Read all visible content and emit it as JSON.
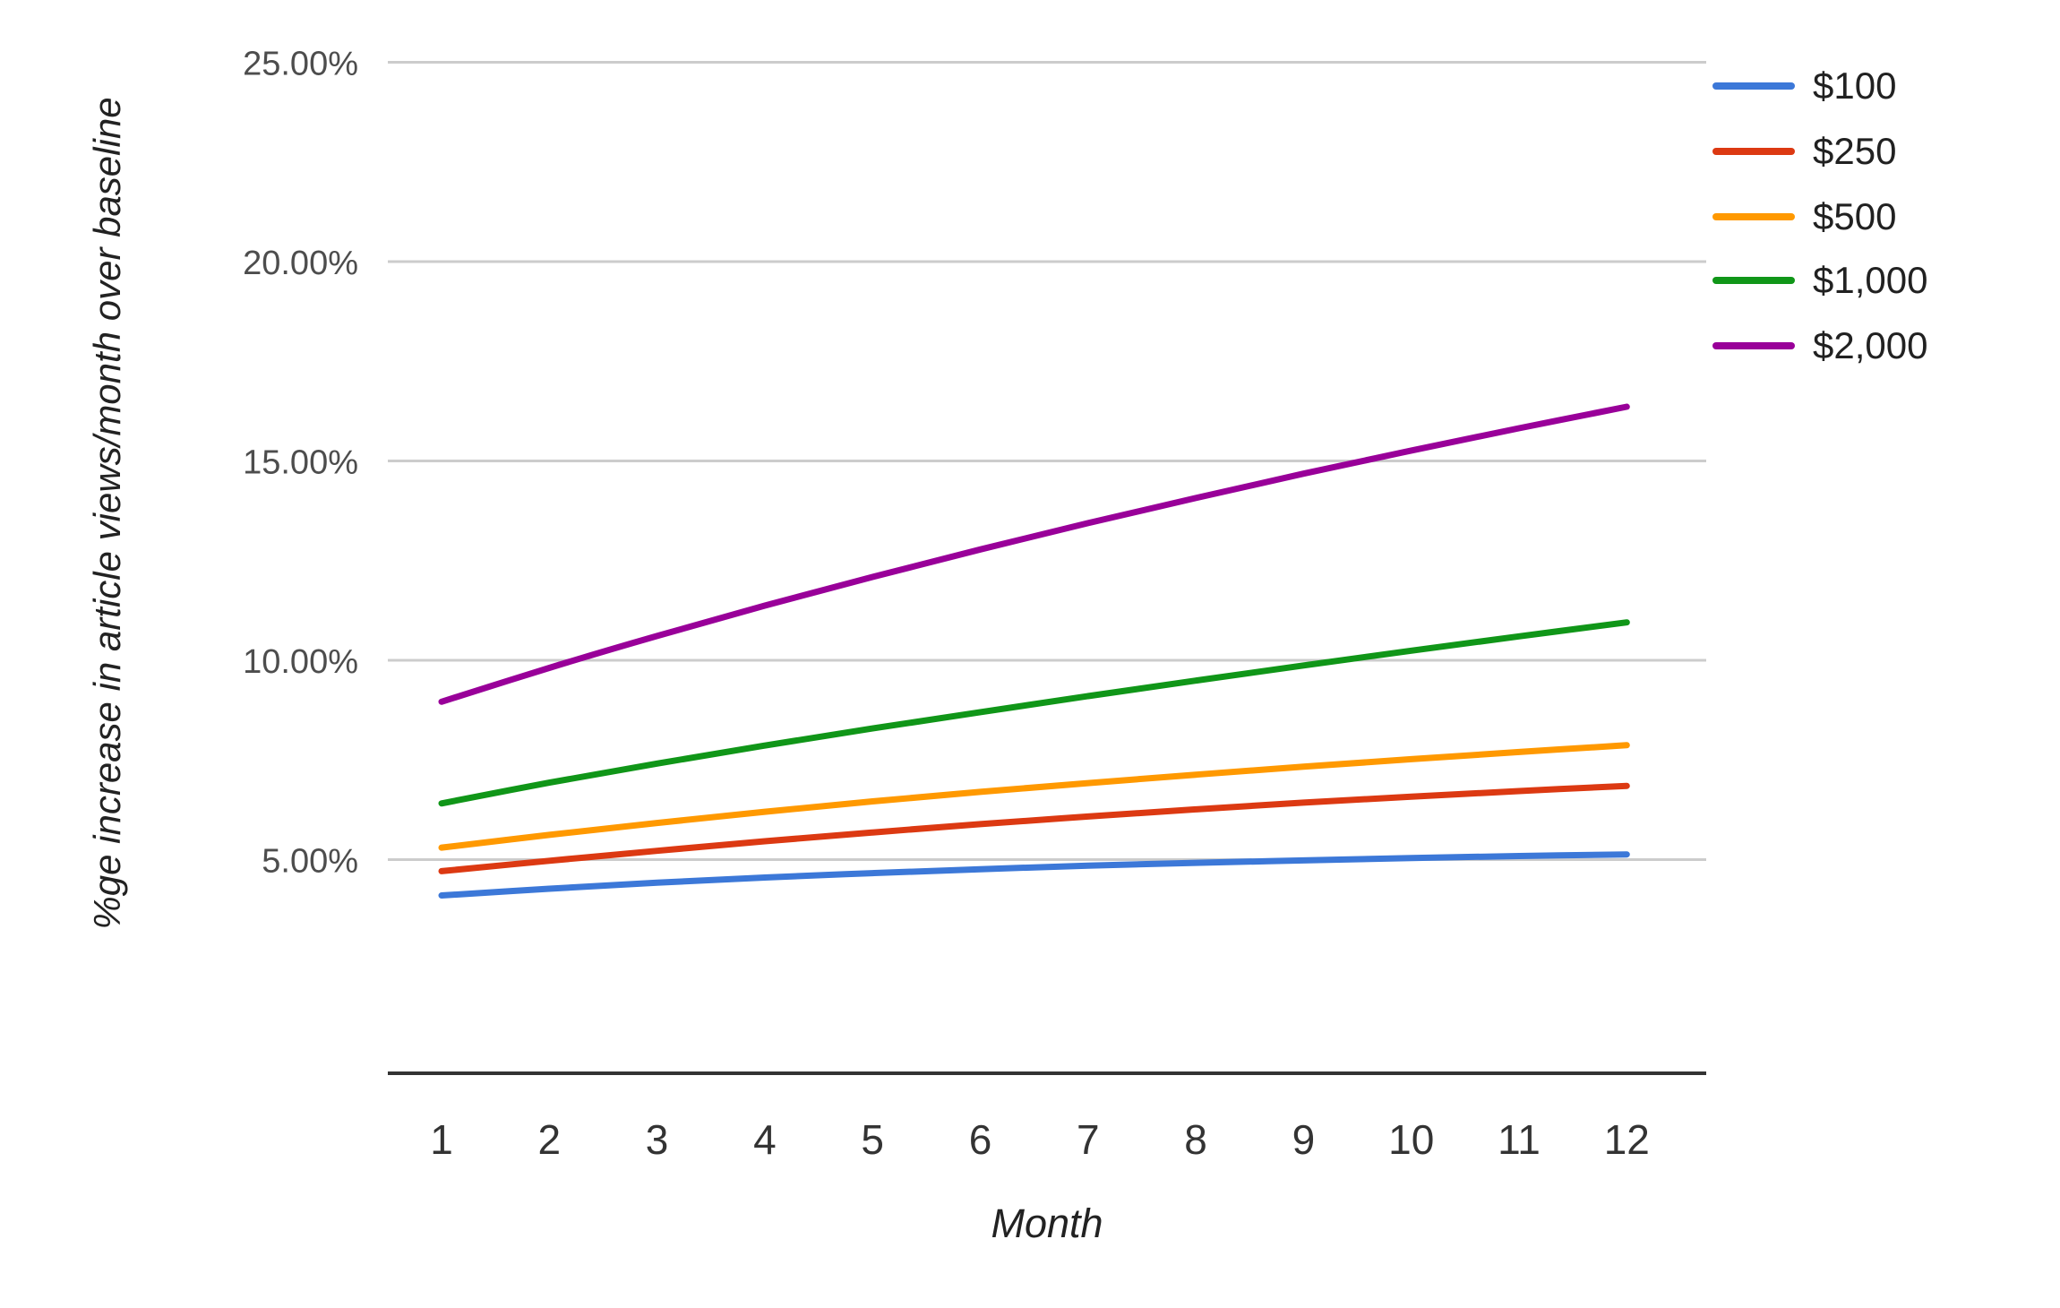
{
  "chart_data": {
    "type": "line",
    "title": "",
    "xlabel": "Month",
    "ylabel": "%ge increase in article views/month over baseline",
    "x": [
      1,
      2,
      3,
      4,
      5,
      6,
      7,
      8,
      9,
      10,
      11,
      12
    ],
    "x_tick_labels": [
      "1",
      "2",
      "3",
      "4",
      "5",
      "6",
      "7",
      "8",
      "9",
      "10",
      "11",
      "12"
    ],
    "y_ticks": [
      5,
      10,
      15,
      20,
      25
    ],
    "y_tick_labels": [
      "5.00%",
      "10.00%",
      "15.00%",
      "20.00%",
      "25.00%"
    ],
    "ylim": [
      0,
      25
    ],
    "grid": true,
    "line_smoothing": true,
    "legend_position": "right",
    "series": [
      {
        "name": "$100",
        "color": "#3C78D8",
        "values": [
          4.1,
          4.27,
          4.42,
          4.55,
          4.66,
          4.76,
          4.85,
          4.92,
          4.98,
          5.04,
          5.09,
          5.13
        ]
      },
      {
        "name": "$250",
        "color": "#DC3912",
        "values": [
          4.71,
          4.97,
          5.22,
          5.46,
          5.68,
          5.89,
          6.08,
          6.26,
          6.43,
          6.58,
          6.72,
          6.85
        ]
      },
      {
        "name": "$500",
        "color": "#FF9900",
        "values": [
          5.3,
          5.62,
          5.92,
          6.2,
          6.46,
          6.7,
          6.92,
          7.13,
          7.33,
          7.52,
          7.7,
          7.87
        ]
      },
      {
        "name": "$1,000",
        "color": "#109618",
        "values": [
          6.41,
          6.93,
          7.41,
          7.86,
          8.29,
          8.7,
          9.1,
          9.49,
          9.87,
          10.24,
          10.6,
          10.95
        ]
      },
      {
        "name": "$2,000",
        "color": "#990099",
        "values": [
          8.96,
          9.81,
          10.61,
          11.37,
          12.09,
          12.78,
          13.44,
          14.07,
          14.68,
          15.26,
          15.82,
          16.36
        ]
      }
    ]
  },
  "colors": {
    "background": "#ffffff",
    "gridline": "#cccccc",
    "axis_line": "#333333",
    "y_tick_text": "#4d4d4d",
    "x_tick_text": "#333333",
    "axis_title_text": "#222222",
    "legend_text": "#212121"
  }
}
